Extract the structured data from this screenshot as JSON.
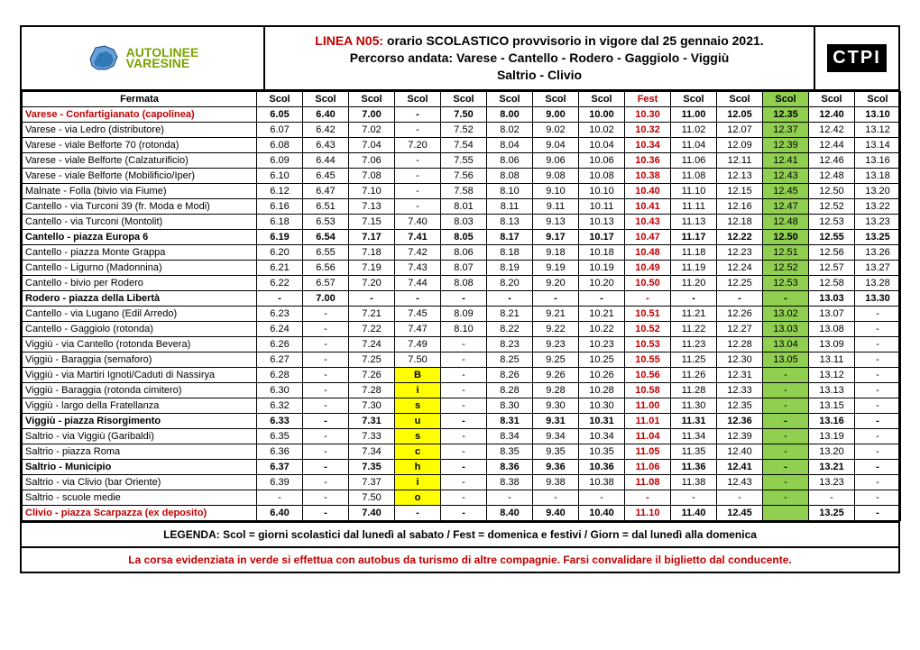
{
  "header": {
    "linea_label": "LINEA N05:",
    "title_rest_line1": " orario SCOLASTICO provvisorio in vigore dal 25 gennaio 2021.",
    "title_line2": "Percorso andata: Varese - Cantello - Rodero - Gaggiolo - Viggiù",
    "title_line3": "Saltrio - Clivio",
    "ctpi": "CTPI",
    "logo_top": "UTOLINEE",
    "logo_bottom": "ARESINE"
  },
  "columns": {
    "stop_header": "Fermata",
    "run_labels": [
      "Scol",
      "Scol",
      "Scol",
      "Scol",
      "Scol",
      "Scol",
      "Scol",
      "Scol",
      "Fest",
      "Scol",
      "Scol",
      "Scol",
      "Scol",
      "Scol"
    ],
    "fest_index": 8,
    "green_index": 11
  },
  "rows": [
    {
      "stop": "Varese - Confartigianato (capolinea)",
      "bold": true,
      "red": true,
      "times": [
        "6.05",
        "6.40",
        "7.00",
        "-",
        "7.50",
        "8.00",
        "9.00",
        "10.00",
        "10.30",
        "11.00",
        "12.05",
        "12.35",
        "12.40",
        "13.10"
      ]
    },
    {
      "stop": "Varese - via Ledro (distributore)",
      "times": [
        "6.07",
        "6.42",
        "7.02",
        "-",
        "7.52",
        "8.02",
        "9.02",
        "10.02",
        "10.32",
        "11.02",
        "12.07",
        "12.37",
        "12.42",
        "13.12"
      ]
    },
    {
      "stop": "Varese - viale Belforte 70 (rotonda)",
      "times": [
        "6.08",
        "6.43",
        "7.04",
        "7.20",
        "7.54",
        "8.04",
        "9.04",
        "10.04",
        "10.34",
        "11.04",
        "12.09",
        "12.39",
        "12.44",
        "13.14"
      ]
    },
    {
      "stop": "Varese - viale Belforte (Calzaturificio)",
      "times": [
        "6.09",
        "6.44",
        "7.06",
        "-",
        "7.55",
        "8.06",
        "9.06",
        "10.06",
        "10.36",
        "11.06",
        "12.11",
        "12.41",
        "12.46",
        "13.16"
      ]
    },
    {
      "stop": "Varese - viale Belforte (Mobilificio/Iper)",
      "times": [
        "6.10",
        "6.45",
        "7.08",
        "-",
        "7.56",
        "8.08",
        "9.08",
        "10.08",
        "10.38",
        "11.08",
        "12.13",
        "12.43",
        "12.48",
        "13.18"
      ]
    },
    {
      "stop": "Malnate - Folla (bivio via Fiume)",
      "times": [
        "6.12",
        "6.47",
        "7.10",
        "-",
        "7.58",
        "8.10",
        "9.10",
        "10.10",
        "10.40",
        "11.10",
        "12.15",
        "12.45",
        "12.50",
        "13.20"
      ]
    },
    {
      "stop": "Cantello - via Turconi 39 (fr. Moda e Modi)",
      "times": [
        "6.16",
        "6.51",
        "7.13",
        "-",
        "8.01",
        "8.11",
        "9.11",
        "10.11",
        "10.41",
        "11.11",
        "12.16",
        "12.47",
        "12.52",
        "13.22"
      ]
    },
    {
      "stop": "Cantello - via Turconi (Montolit)",
      "times": [
        "6.18",
        "6.53",
        "7.15",
        "7.40",
        "8.03",
        "8.13",
        "9.13",
        "10.13",
        "10.43",
        "11.13",
        "12.18",
        "12.48",
        "12.53",
        "13.23"
      ]
    },
    {
      "stop": "Cantello - piazza Europa 6",
      "bold": true,
      "times": [
        "6.19",
        "6.54",
        "7.17",
        "7.41",
        "8.05",
        "8.17",
        "9.17",
        "10.17",
        "10.47",
        "11.17",
        "12.22",
        "12.50",
        "12.55",
        "13.25"
      ]
    },
    {
      "stop": "Cantello - piazza Monte Grappa",
      "times": [
        "6.20",
        "6.55",
        "7.18",
        "7.42",
        "8.06",
        "8.18",
        "9.18",
        "10.18",
        "10.48",
        "11.18",
        "12.23",
        "12.51",
        "12.56",
        "13.26"
      ]
    },
    {
      "stop": "Cantello - Ligurno (Madonnina)",
      "times": [
        "6.21",
        "6.56",
        "7.19",
        "7.43",
        "8.07",
        "8.19",
        "9.19",
        "10.19",
        "10.49",
        "11.19",
        "12.24",
        "12.52",
        "12.57",
        "13.27"
      ]
    },
    {
      "stop": "Cantello - bivio per Rodero",
      "times": [
        "6.22",
        "6.57",
        "7.20",
        "7.44",
        "8.08",
        "8.20",
        "9.20",
        "10.20",
        "10.50",
        "11.20",
        "12.25",
        "12.53",
        "12.58",
        "13.28"
      ]
    },
    {
      "stop": "Rodero - piazza della Libertà",
      "bold": true,
      "times": [
        "-",
        "7.00",
        "-",
        "-",
        "-",
        "-",
        "-",
        "-",
        "-",
        "-",
        "-",
        "-",
        "13.03",
        "13.30"
      ]
    },
    {
      "stop": "Cantello - via Lugano (Edil Arredo)",
      "times": [
        "6.23",
        "-",
        "7.21",
        "7.45",
        "8.09",
        "8.21",
        "9.21",
        "10.21",
        "10.51",
        "11.21",
        "12.26",
        "13.02",
        "13.07",
        "-"
      ]
    },
    {
      "stop": "Cantello - Gaggiolo (rotonda)",
      "times": [
        "6.24",
        "-",
        "7.22",
        "7.47",
        "8.10",
        "8.22",
        "9.22",
        "10.22",
        "10.52",
        "11.22",
        "12.27",
        "13.03",
        "13.08",
        "-"
      ]
    },
    {
      "stop": "Viggiù - via Cantello (rotonda Bevera)",
      "times": [
        "6.26",
        "-",
        "7.24",
        "7.49",
        "-",
        "8.23",
        "9.23",
        "10.23",
        "10.53",
        "11.23",
        "12.28",
        "13.04",
        "13.09",
        "-"
      ]
    },
    {
      "stop": "Viggiù - Baraggia (semaforo)",
      "times": [
        "6.27",
        "-",
        "7.25",
        "7.50",
        "-",
        "8.25",
        "9.25",
        "10.25",
        "10.55",
        "11.25",
        "12.30",
        "13.05",
        "13.11",
        "-"
      ]
    },
    {
      "stop": "Viggiù - via Martiri Ignoti/Caduti di Nassirya",
      "times": [
        "6.28",
        "-",
        "7.26",
        "B",
        "-",
        "8.26",
        "9.26",
        "10.26",
        "10.56",
        "11.26",
        "12.31",
        "-",
        "13.12",
        "-"
      ],
      "yellow": {
        "3": true
      }
    },
    {
      "stop": "Viggiù - Baraggia (rotonda cimitero)",
      "times": [
        "6.30",
        "-",
        "7.28",
        "i",
        "-",
        "8.28",
        "9.28",
        "10.28",
        "10.58",
        "11.28",
        "12.33",
        "-",
        "13.13",
        "-"
      ],
      "yellow": {
        "3": true
      }
    },
    {
      "stop": "Viggiù - largo della Fratellanza",
      "times": [
        "6.32",
        "-",
        "7.30",
        "s",
        "-",
        "8.30",
        "9.30",
        "10.30",
        "11.00",
        "11.30",
        "12.35",
        "-",
        "13.15",
        "-"
      ],
      "yellow": {
        "3": true
      }
    },
    {
      "stop": "Viggiù - piazza Risorgimento",
      "bold": true,
      "times": [
        "6.33",
        "-",
        "7.31",
        "u",
        "-",
        "8.31",
        "9.31",
        "10.31",
        "11.01",
        "11.31",
        "12.36",
        "-",
        "13.16",
        "-"
      ],
      "yellow": {
        "3": true
      }
    },
    {
      "stop": "Saltrio - via Viggiù (Garibaldi)",
      "times": [
        "6.35",
        "-",
        "7.33",
        "s",
        "-",
        "8.34",
        "9.34",
        "10.34",
        "11.04",
        "11.34",
        "12.39",
        "-",
        "13.19",
        "-"
      ],
      "yellow": {
        "3": true
      }
    },
    {
      "stop": "Saltrio - piazza Roma",
      "times": [
        "6.36",
        "-",
        "7.34",
        "c",
        "-",
        "8.35",
        "9.35",
        "10.35",
        "11.05",
        "11.35",
        "12.40",
        "-",
        "13.20",
        "-"
      ],
      "yellow": {
        "3": true
      }
    },
    {
      "stop": "Saltrio - Municipio",
      "bold": true,
      "times": [
        "6.37",
        "-",
        "7.35",
        "h",
        "-",
        "8.36",
        "9.36",
        "10.36",
        "11.06",
        "11.36",
        "12.41",
        "-",
        "13.21",
        "-"
      ],
      "yellow": {
        "3": true
      }
    },
    {
      "stop": "Saltrio - via Clivio (bar Oriente)",
      "times": [
        "6.39",
        "-",
        "7.37",
        "i",
        "-",
        "8.38",
        "9.38",
        "10.38",
        "11.08",
        "11.38",
        "12.43",
        "-",
        "13.23",
        "-"
      ],
      "yellow": {
        "3": true
      }
    },
    {
      "stop": "Saltrio - scuole medie",
      "times": [
        "-",
        "-",
        "7.50",
        "o",
        "-",
        "-",
        "-",
        "-",
        "-",
        "-",
        "-",
        "-",
        "-",
        "-"
      ],
      "yellow": {
        "3": true
      }
    },
    {
      "stop": "Clivio - piazza Scarpazza (ex deposito)",
      "bold": true,
      "red": true,
      "times": [
        "6.40",
        "-",
        "7.40",
        "-",
        "-",
        "8.40",
        "9.40",
        "10.40",
        "11.10",
        "11.40",
        "12.45",
        "",
        "13.25",
        "-"
      ]
    }
  ],
  "legend": "LEGENDA:  Scol = giorni scolastici dal lunedì al sabato / Fest = domenica e festivi / Giorn = dal lunedì alla domenica",
  "note": "La corsa evidenziata in verde si effettua con autobus da turismo di altre compagnie. Farsi convalidare il biglietto dal conducente.",
  "style": {
    "green": "#91cf50",
    "yellow": "#ffff00",
    "red": "#c00000",
    "font_size_cell": 11,
    "font_size_title": 14
  }
}
